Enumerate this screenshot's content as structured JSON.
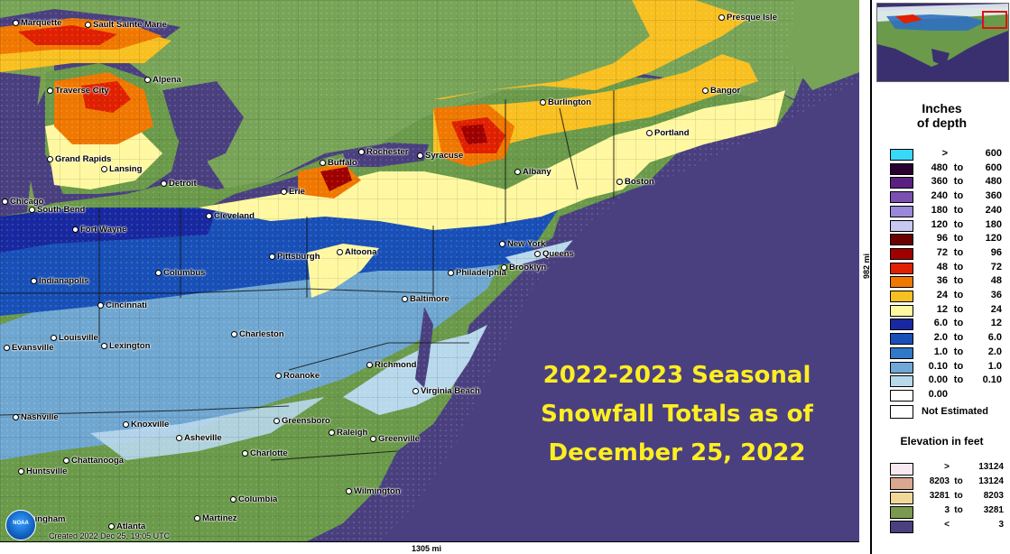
{
  "overlay": {
    "line1": "2022-2023 Seasonal",
    "line2": "Snowfall Totals as of",
    "line3": "December 25, 2022"
  },
  "created": "Created 2022 Dec 25, 19:05 UTC",
  "logo_text": "NOAA",
  "scale": {
    "x": "1305 mi",
    "y": "982 mi"
  },
  "cities": [
    {
      "name": "Marquette",
      "key": "marquette"
    },
    {
      "name": "Sault Sainte Marie",
      "key": "sault"
    },
    {
      "name": "Presque Isle",
      "key": "presque"
    },
    {
      "name": "Alpena",
      "key": "alpena"
    },
    {
      "name": "Traverse City",
      "key": "traverse"
    },
    {
      "name": "Bangor",
      "key": "bangor"
    },
    {
      "name": "Burlington",
      "key": "burlington"
    },
    {
      "name": "Portland",
      "key": "portland"
    },
    {
      "name": "Grand Rapids",
      "key": "grandrapids"
    },
    {
      "name": "Lansing",
      "key": "lansing"
    },
    {
      "name": "Rochester",
      "key": "rochester"
    },
    {
      "name": "Syracuse",
      "key": "syracuse"
    },
    {
      "name": "Buffalo",
      "key": "buffalo"
    },
    {
      "name": "Albany",
      "key": "albany"
    },
    {
      "name": "Detroit",
      "key": "detroit"
    },
    {
      "name": "Boston",
      "key": "boston"
    },
    {
      "name": "Chicago",
      "key": "chicago"
    },
    {
      "name": "South Bend",
      "key": "southbend"
    },
    {
      "name": "Erie",
      "key": "erie"
    },
    {
      "name": "Cleveland",
      "key": "cleveland"
    },
    {
      "name": "Fort Wayne",
      "key": "fortwayne"
    },
    {
      "name": "New York",
      "key": "newyork"
    },
    {
      "name": "Queens",
      "key": "queens"
    },
    {
      "name": "Altoona",
      "key": "altoona"
    },
    {
      "name": "Pittsburgh",
      "key": "pittsburgh"
    },
    {
      "name": "Philadelphia",
      "key": "philadelphia"
    },
    {
      "name": "Brooklyn",
      "key": "brooklyn"
    },
    {
      "name": "Columbus",
      "key": "columbus"
    },
    {
      "name": "Indianapolis",
      "key": "indianapolis"
    },
    {
      "name": "Baltimore",
      "key": "baltimore"
    },
    {
      "name": "Cincinnati",
      "key": "cincinnati"
    },
    {
      "name": "Charleston",
      "key": "charleston"
    },
    {
      "name": "Louisville",
      "key": "louisville"
    },
    {
      "name": "Evansville",
      "key": "evansville"
    },
    {
      "name": "Lexington",
      "key": "lexington"
    },
    {
      "name": "Richmond",
      "key": "richmond"
    },
    {
      "name": "Roanoke",
      "key": "roanoke"
    },
    {
      "name": "Virginia Beach",
      "key": "vabeach"
    },
    {
      "name": "Nashville",
      "key": "nashville"
    },
    {
      "name": "Knoxville",
      "key": "knoxville"
    },
    {
      "name": "Greensboro",
      "key": "greensboro"
    },
    {
      "name": "Asheville",
      "key": "asheville"
    },
    {
      "name": "Raleigh",
      "key": "raleigh"
    },
    {
      "name": "Greenville",
      "key": "greenville"
    },
    {
      "name": "Chattanooga",
      "key": "chattanooga"
    },
    {
      "name": "Charlotte",
      "key": "charlotte"
    },
    {
      "name": "Huntsville",
      "key": "huntsville"
    },
    {
      "name": "Columbia",
      "key": "columbia"
    },
    {
      "name": "Wilmington",
      "key": "wilmington"
    },
    {
      "name": "Birmingham",
      "key": "birmingham"
    },
    {
      "name": "Atlanta",
      "key": "atlanta"
    },
    {
      "name": "Martinez",
      "key": "martinez"
    }
  ],
  "legend": {
    "title_line1": "Inches",
    "title_line2": "of depth",
    "to": "to",
    "rows": [
      {
        "lo": ">",
        "hi": "600",
        "color": "#38d8f8"
      },
      {
        "lo": "480",
        "hi": "600",
        "color": "#2a0030"
      },
      {
        "lo": "360",
        "hi": "480",
        "color": "#5a2080"
      },
      {
        "lo": "240",
        "hi": "360",
        "color": "#7a50b0"
      },
      {
        "lo": "180",
        "hi": "240",
        "color": "#9a88d8"
      },
      {
        "lo": "120",
        "hi": "180",
        "color": "#c8c8f0"
      },
      {
        "lo": "96",
        "hi": "120",
        "color": "#6a0000"
      },
      {
        "lo": "72",
        "hi": "96",
        "color": "#a00000"
      },
      {
        "lo": "48",
        "hi": "72",
        "color": "#e02000"
      },
      {
        "lo": "36",
        "hi": "48",
        "color": "#f07800"
      },
      {
        "lo": "24",
        "hi": "36",
        "color": "#f8c020"
      },
      {
        "lo": "12",
        "hi": "24",
        "color": "#fff8a0"
      },
      {
        "lo": "6.0",
        "hi": "12",
        "color": "#1828a0"
      },
      {
        "lo": "2.0",
        "hi": "6.0",
        "color": "#1850b8"
      },
      {
        "lo": "1.0",
        "hi": "2.0",
        "color": "#3078c8"
      },
      {
        "lo": "0.10",
        "hi": "1.0",
        "color": "#70a8d8"
      },
      {
        "lo": "0.00",
        "hi": "0.10",
        "color": "#b8d8ec"
      },
      {
        "lo": "0.00",
        "hi": "",
        "color": "#ffffff"
      }
    ],
    "not_estimated": "Not Estimated"
  },
  "elevation": {
    "title": "Elevation in feet",
    "rows": [
      {
        "lo": ">",
        "hi": "13124",
        "color": "#f8e8f0",
        "to": ""
      },
      {
        "lo": "8203",
        "hi": "13124",
        "color": "#d8a890",
        "to": "to"
      },
      {
        "lo": "3281",
        "hi": "8203",
        "color": "#f0d898",
        "to": "to"
      },
      {
        "lo": "3",
        "hi": "3281",
        "color": "#7a9a50",
        "to": "to"
      },
      {
        "lo": "<",
        "hi": "3",
        "color": "#4a4080",
        "to": ""
      }
    ]
  },
  "colors": {
    "ocean": "#4a4080",
    "land": "#6a9a4a",
    "canada": "#78a458",
    "lake": "#4a4080"
  }
}
